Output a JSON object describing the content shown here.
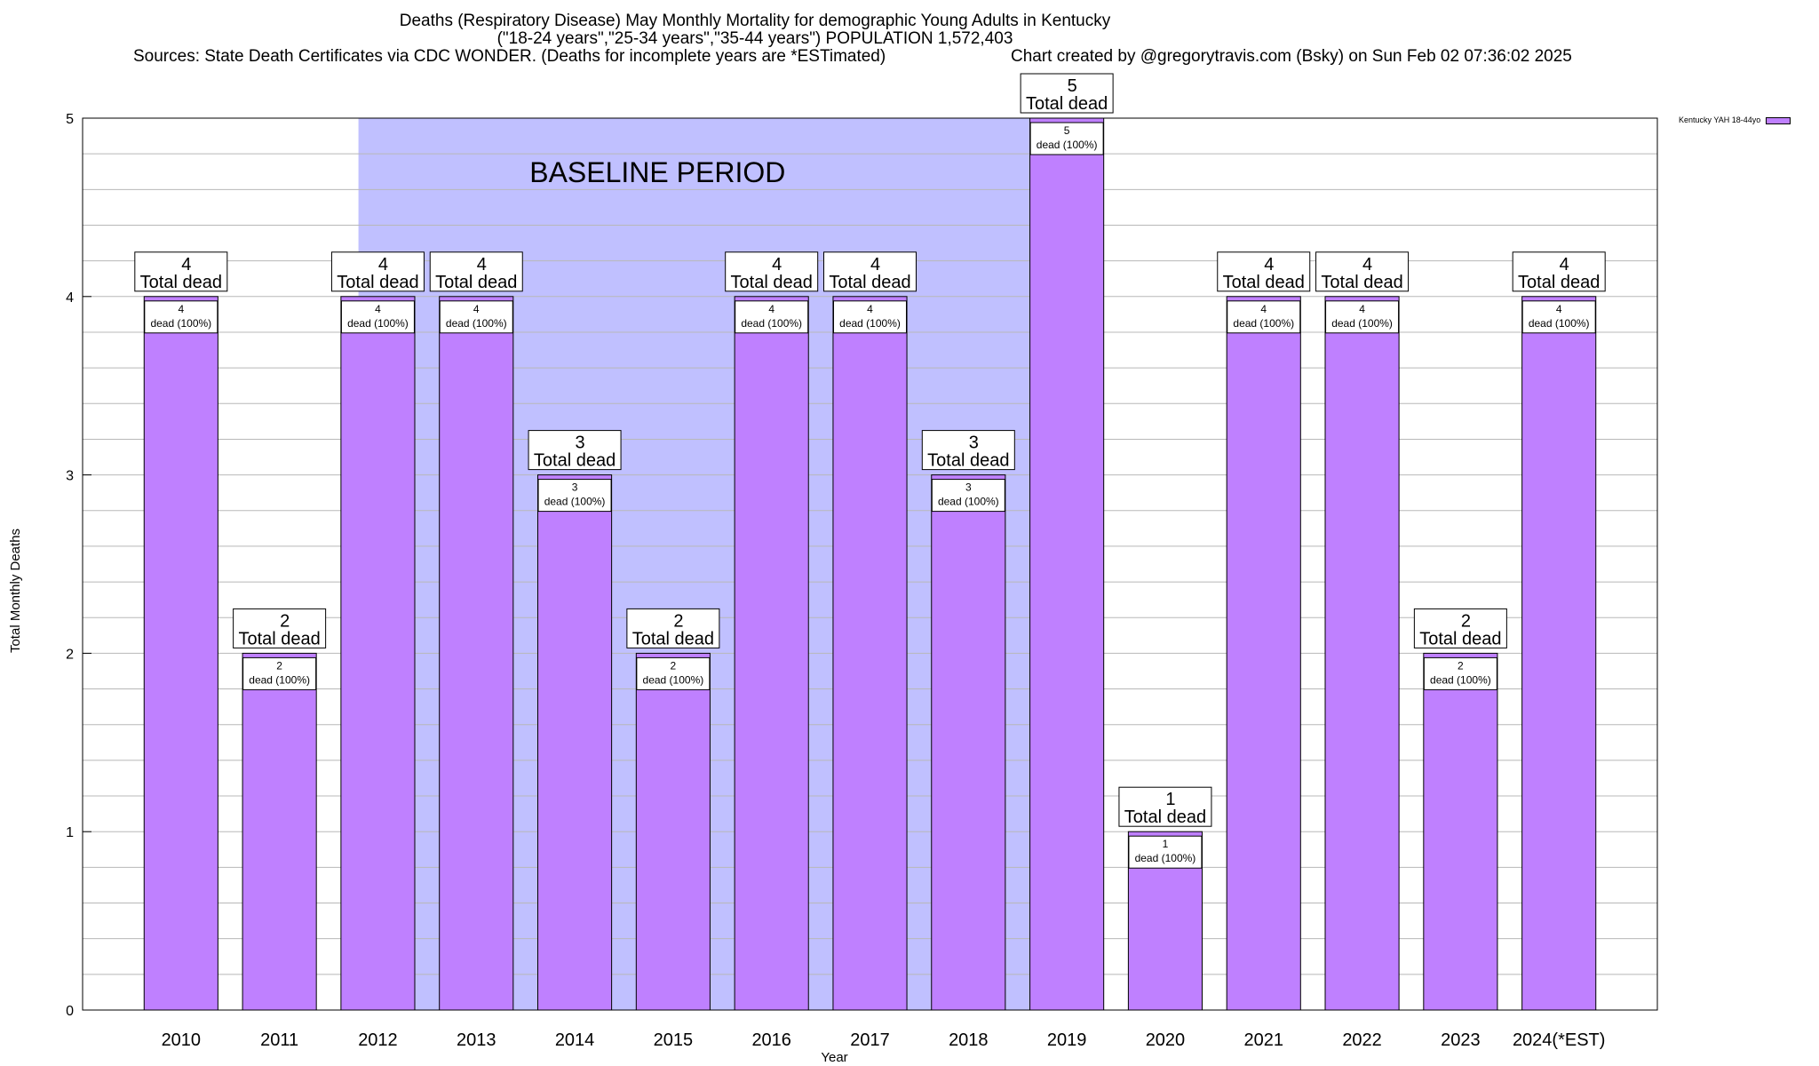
{
  "chart": {
    "title_line1": "Deaths (Respiratory Disease) May Monthly Mortality for demographic Young Adults in Kentucky",
    "title_line2": "(\"18-24 years\",\"25-34 years\",\"35-44 years\") POPULATION 1,572,403",
    "title_line3_sources": "Sources: State Death Certificates via CDC WONDER. (Deaths for incomplete years are *ESTimated)",
    "title_line3_credit": "Chart created by @gregorytravis.com (Bsky) on Sun Feb 02 07:36:02 2025",
    "legend_label": "Kentucky YAH 18-44yo"
  },
  "chart_data": {
    "type": "bar",
    "xlabel": "Year",
    "ylabel": "Total Monthly Deaths",
    "ylim": [
      0,
      5
    ],
    "yticks": [
      0,
      1,
      2,
      3,
      4,
      5
    ],
    "grid": true,
    "legend_position": "top-right (outside plot)",
    "bar_color": "#bf80ff",
    "baseline": {
      "label": "BASELINE PERIOD",
      "from": "2012",
      "to": "2019",
      "color": "#c0c0ff"
    },
    "categories": [
      "2010",
      "2011",
      "2012",
      "2013",
      "2014",
      "2015",
      "2016",
      "2017",
      "2018",
      "2019",
      "2020",
      "2021",
      "2022",
      "2023",
      "2024(*EST)"
    ],
    "series": [
      {
        "name": "Kentucky YAH 18-44yo",
        "values": [
          4,
          2,
          4,
          4,
          3,
          2,
          4,
          4,
          3,
          5,
          1,
          4,
          4,
          2,
          4
        ]
      }
    ],
    "total_label_suffix": "Total dead",
    "inner_label_suffix": "dead (100%)"
  }
}
